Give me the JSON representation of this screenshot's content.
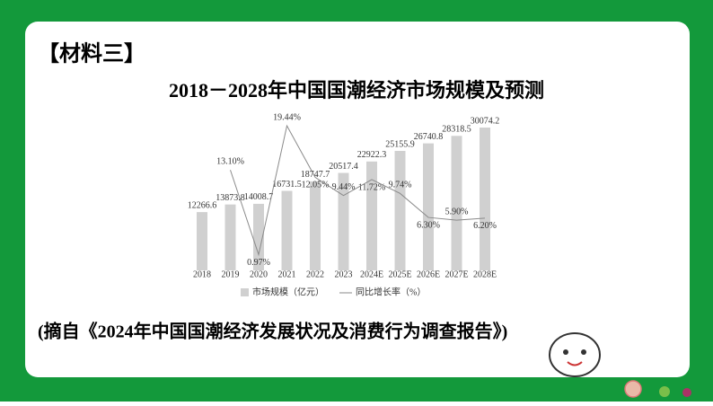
{
  "header": {
    "label": "【材料三】"
  },
  "chart_data": {
    "type": "bar-line",
    "title": "2018－2028年中国国潮经济市场规模及预测",
    "categories": [
      "2018",
      "2019",
      "2020",
      "2021",
      "2022",
      "2023",
      "2024E",
      "2025E",
      "2026E",
      "2027E",
      "2028E"
    ],
    "series": [
      {
        "name": "市场规模（亿元）",
        "type": "bar",
        "color": "#d0d0d0",
        "values": [
          12266.6,
          13873.8,
          14008.7,
          16731.5,
          18747.7,
          20517.4,
          22922.3,
          25155.9,
          26740.8,
          28318.5,
          30074.2
        ]
      },
      {
        "name": "同比增长率（%）",
        "type": "line",
        "axis": "y2",
        "color": "#8a8a8a",
        "values": [
          null,
          13.1,
          0.97,
          19.44,
          12.05,
          9.44,
          11.72,
          9.74,
          6.3,
          5.9,
          6.2
        ],
        "value_labels": [
          null,
          "13.10%",
          "0.97%",
          "19.44%",
          "12.05%",
          "9.44%",
          "11.72%",
          "9.74%",
          "6.30%",
          "5.90%",
          "6.20%"
        ]
      }
    ]
  },
  "source": "(摘自《2024年中国国潮经济发展状况及消费行为调查报告》)"
}
